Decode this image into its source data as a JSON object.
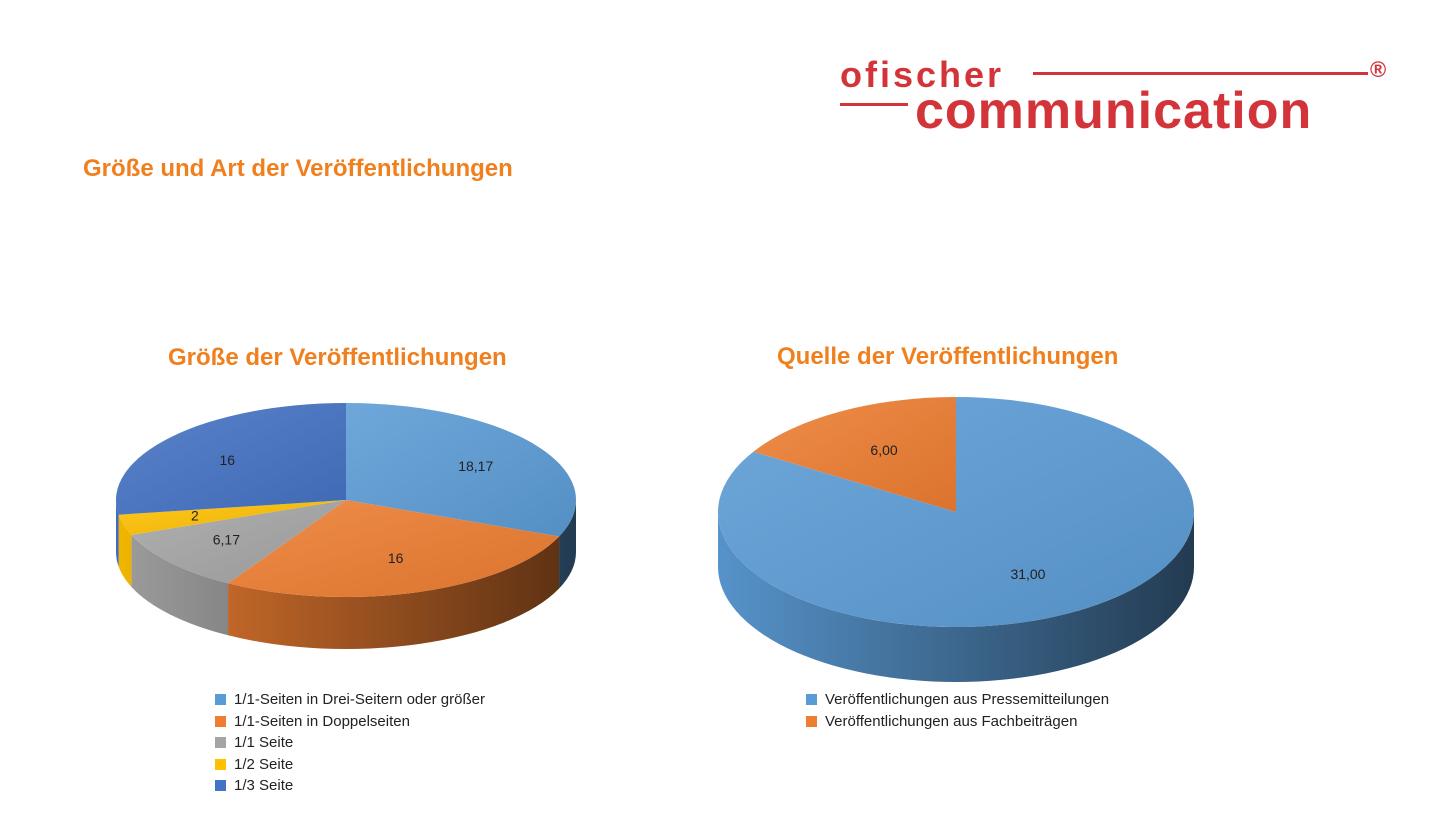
{
  "page": {
    "title": "Größe und Art der Veröffentlichungen",
    "logo": {
      "top_text": "ofischer",
      "bottom_text": "communication",
      "registered": "®",
      "color": "#d2343a"
    }
  },
  "chart_data": [
    {
      "type": "pie",
      "title": "Größe der Veröffentlichungen",
      "categories": [
        "1/1-Seiten in Drei-Seitern oder größer",
        "1/1-Seiten in Doppelseiten",
        "1/1 Seite",
        "1/2 Seite",
        "1/3 Seite"
      ],
      "values": [
        18.17,
        16,
        6.17,
        2,
        16
      ],
      "data_labels": [
        "18,17",
        "16",
        "6,17",
        "2",
        "16"
      ],
      "colors": [
        "#5b9bd5",
        "#ed7d31",
        "#a5a5a5",
        "#ffc000",
        "#4472c4"
      ],
      "legend": "bottom"
    },
    {
      "type": "pie",
      "title": "Quelle der Veröffentlichungen",
      "categories": [
        "Veröffentlichungen aus Pressemitteilungen",
        "Veröffentlichungen aus Fachbeiträgen"
      ],
      "values": [
        31.0,
        6.0
      ],
      "data_labels": [
        "31,00",
        "6,00"
      ],
      "colors": [
        "#5b9bd5",
        "#ed7d31"
      ],
      "legend": "bottom"
    }
  ]
}
